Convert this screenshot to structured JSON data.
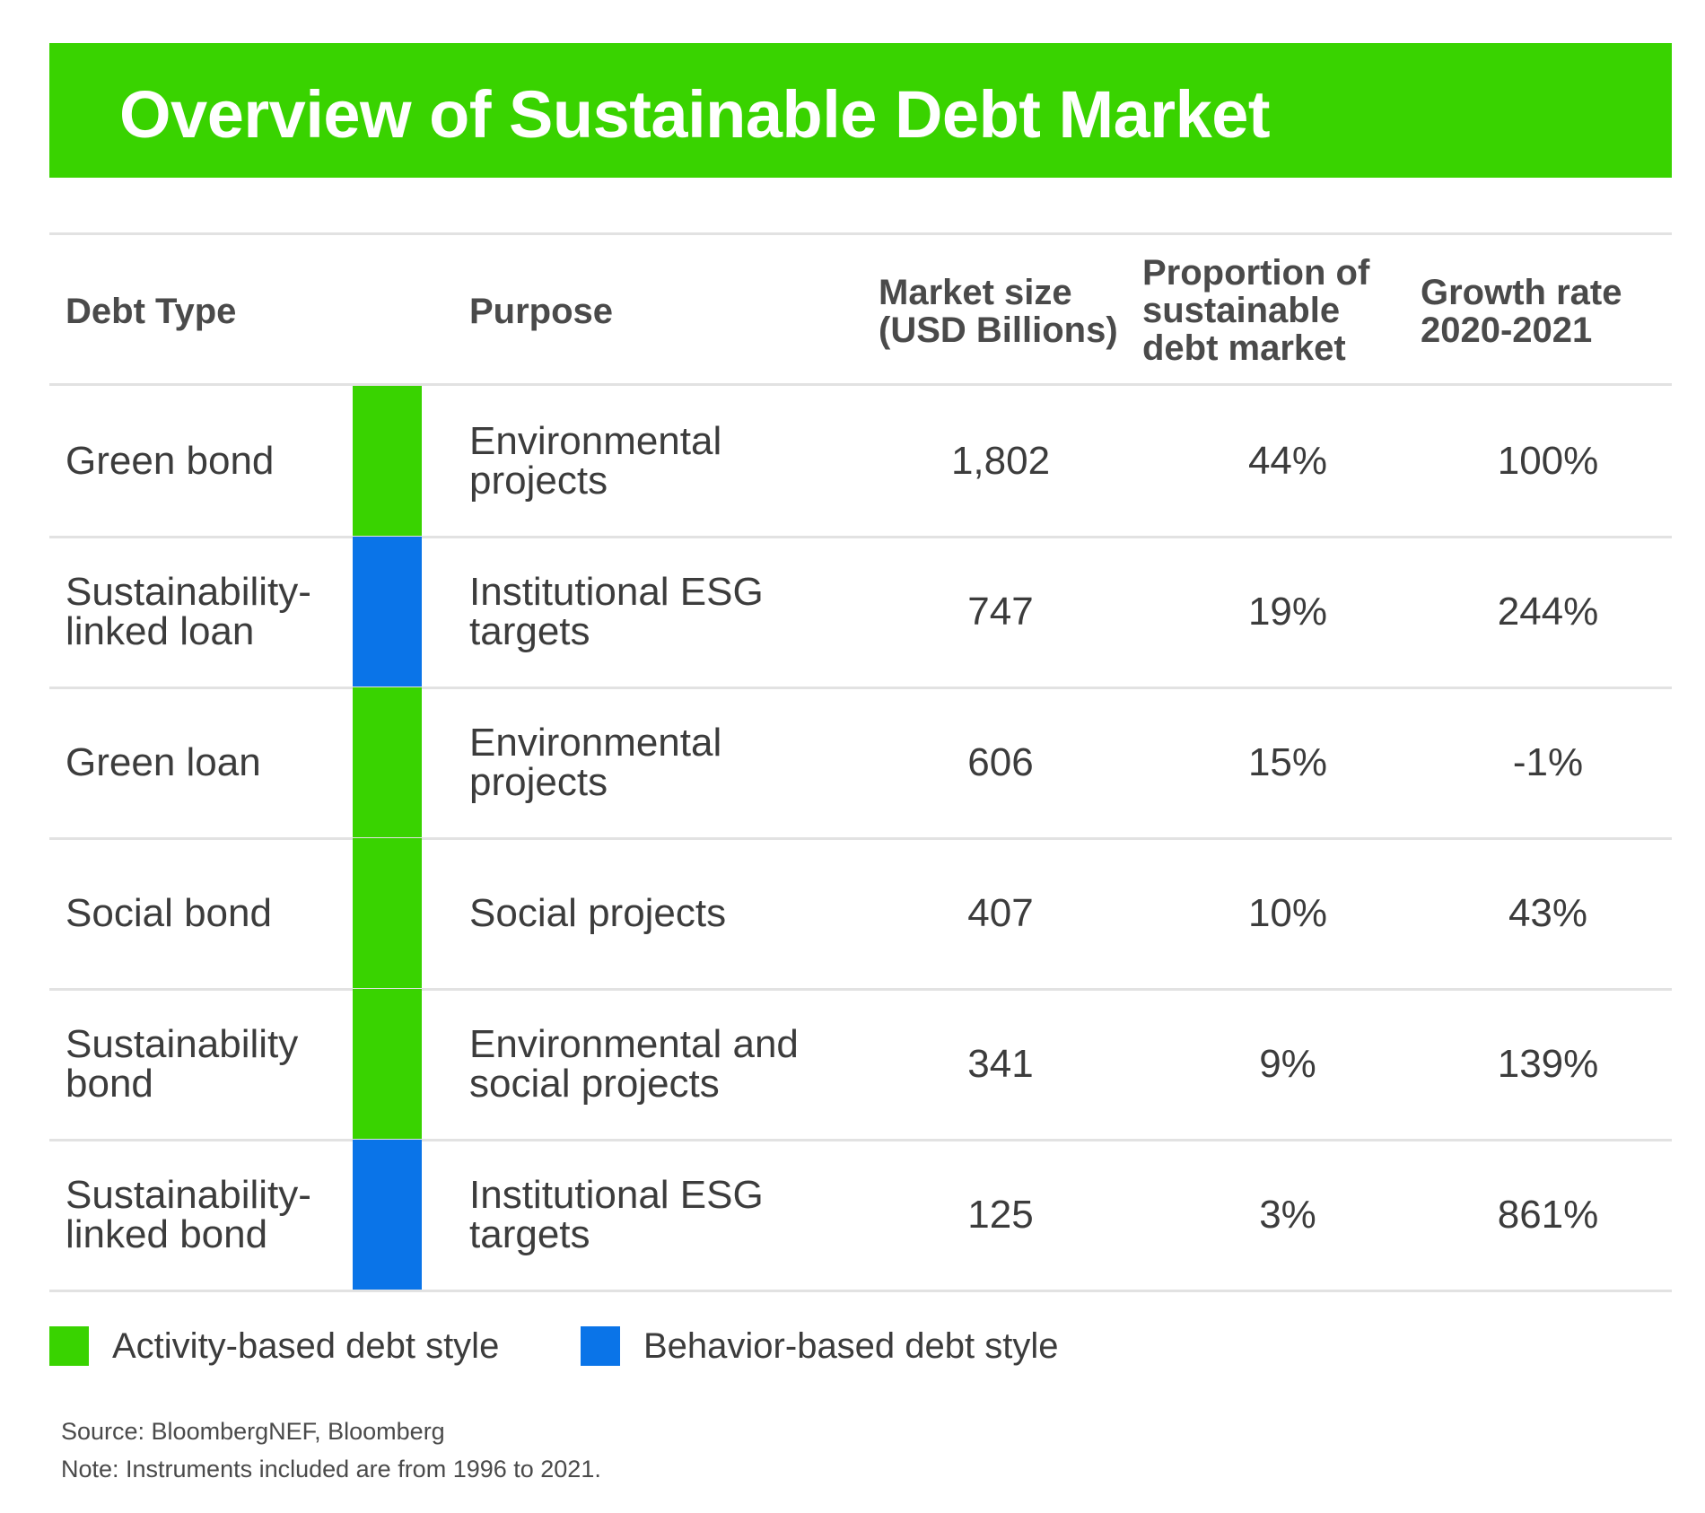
{
  "title": "Overview of Sustainable Debt Market",
  "colors": {
    "activity": "#39d300",
    "behavior": "#0a74e8",
    "header_bar": "#39d300"
  },
  "headers": {
    "debt_type": "Debt Type",
    "purpose": "Purpose",
    "market_size": "Market size\n(USD Billions)",
    "proportion": "Proportion of\nsustainable\ndebt market",
    "growth": "Growth rate\n2020-2021"
  },
  "chart_data": {
    "type": "table",
    "title": "Overview of Sustainable Debt Market",
    "columns": [
      "Debt Type",
      "Purpose",
      "Market size (USD Billions)",
      "Proportion of sustainable debt market",
      "Growth rate 2020-2021"
    ],
    "rows": [
      {
        "debt_type": "Green bond",
        "style": "activity",
        "purpose": "Environmental\nprojects",
        "market_size": "1,802",
        "proportion": "44%",
        "growth": "100%"
      },
      {
        "debt_type": "Sustainability-\nlinked loan",
        "style": "behavior",
        "purpose": "Institutional ESG\ntargets",
        "market_size": "747",
        "proportion": "19%",
        "growth": "244%"
      },
      {
        "debt_type": "Green loan",
        "style": "activity",
        "purpose": "Environmental\nprojects",
        "market_size": "606",
        "proportion": "15%",
        "growth": "-1%"
      },
      {
        "debt_type": "Social bond",
        "style": "activity",
        "purpose": "Social projects",
        "market_size": "407",
        "proportion": "10%",
        "growth": "43%"
      },
      {
        "debt_type": "Sustainability\nbond",
        "style": "activity",
        "purpose": "Environmental and\nsocial projects",
        "market_size": "341",
        "proportion": "9%",
        "growth": "139%"
      },
      {
        "debt_type": "Sustainability-\nlinked bond",
        "style": "behavior",
        "purpose": "Institutional ESG\ntargets",
        "market_size": "125",
        "proportion": "3%",
        "growth": "861%"
      }
    ]
  },
  "legend": [
    {
      "label": "Activity-based debt style",
      "style": "activity"
    },
    {
      "label": "Behavior-based debt style",
      "style": "behavior"
    }
  ],
  "footer": {
    "source": "Source: BloombergNEF, Bloomberg",
    "note": "Note: Instruments included are from 1996 to 2021."
  }
}
